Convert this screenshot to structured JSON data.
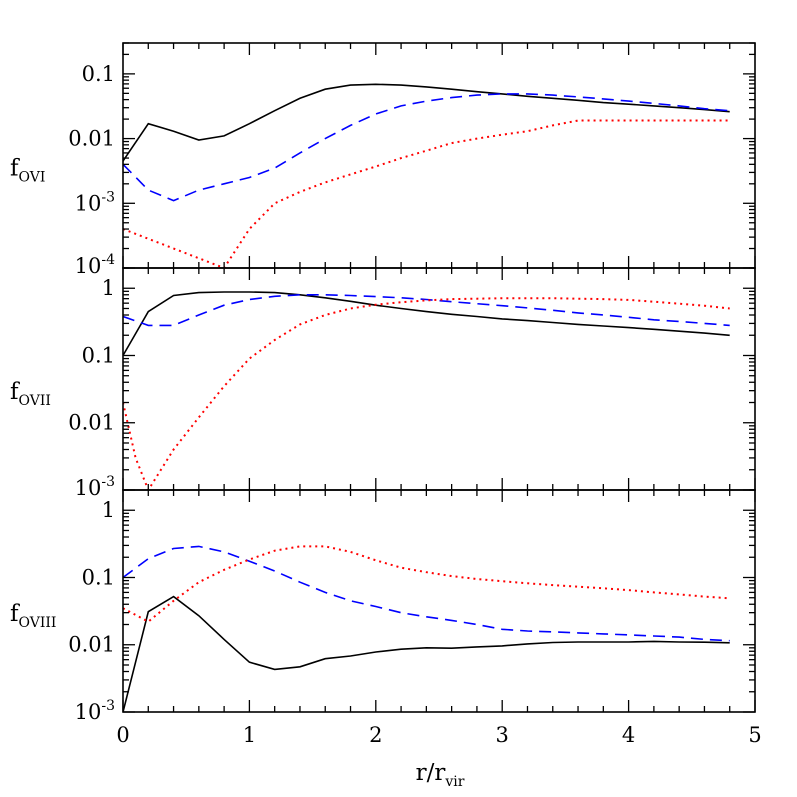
{
  "chart_data": {
    "type": "line",
    "xlabel": {
      "main": "r/r",
      "sub": "vir"
    },
    "xlim": [
      0,
      5
    ],
    "x_ticks": [
      {
        "value": 0,
        "label": "0"
      },
      {
        "value": 1,
        "label": "1"
      },
      {
        "value": 2,
        "label": "2"
      },
      {
        "value": 3,
        "label": "3"
      },
      {
        "value": 4,
        "label": "4"
      },
      {
        "value": 5,
        "label": "5"
      }
    ],
    "series_styles": [
      {
        "key": "black",
        "color": "#000000",
        "style": "solid"
      },
      {
        "key": "blue",
        "color": "#0000ff",
        "style": "dashed"
      },
      {
        "key": "red",
        "color": "#ff0000",
        "style": "dotted"
      }
    ],
    "panels": [
      {
        "ylabel": {
          "main": "f",
          "sub": "OVI"
        },
        "yscale": "log",
        "ylim": [
          0.0001,
          0.3
        ],
        "y_ticks": [
          {
            "value": 0.0001,
            "label": "10",
            "sup": "-4"
          },
          {
            "value": 0.001,
            "label": "10",
            "sup": "-3"
          },
          {
            "value": 0.01,
            "label": "0.01"
          },
          {
            "value": 0.1,
            "label": "0.1"
          }
        ],
        "series": [
          {
            "style_key": "black",
            "x": [
              0,
              0.2,
              0.4,
              0.6,
              0.8,
              1.0,
              1.2,
              1.4,
              1.6,
              1.8,
              2.0,
              2.2,
              2.4,
              2.6,
              2.8,
              3.0,
              3.2,
              3.4,
              3.6,
              3.8,
              4.0,
              4.2,
              4.4,
              4.6,
              4.8
            ],
            "y": [
              0.0045,
              0.017,
              0.013,
              0.0095,
              0.011,
              0.017,
              0.027,
              0.042,
              0.058,
              0.067,
              0.069,
              0.067,
              0.063,
              0.058,
              0.053,
              0.049,
              0.045,
              0.042,
              0.039,
              0.036,
              0.034,
              0.032,
              0.03,
              0.028,
              0.026
            ]
          },
          {
            "style_key": "blue",
            "x": [
              0,
              0.2,
              0.4,
              0.6,
              0.8,
              1.0,
              1.2,
              1.4,
              1.6,
              1.8,
              2.0,
              2.2,
              2.4,
              2.6,
              2.8,
              3.0,
              3.2,
              3.4,
              3.6,
              3.8,
              4.0,
              4.2,
              4.4,
              4.6,
              4.8
            ],
            "y": [
              0.004,
              0.0016,
              0.0011,
              0.0016,
              0.002,
              0.0025,
              0.0035,
              0.006,
              0.01,
              0.016,
              0.024,
              0.032,
              0.038,
              0.043,
              0.047,
              0.049,
              0.049,
              0.047,
              0.044,
              0.041,
              0.038,
              0.035,
              0.032,
              0.029,
              0.027
            ]
          },
          {
            "style_key": "red",
            "x": [
              0,
              0.8,
              1.0,
              1.2,
              1.4,
              1.6,
              1.8,
              2.0,
              2.2,
              2.4,
              2.6,
              2.8,
              3.0,
              3.2,
              3.4,
              3.6,
              3.8,
              4.0,
              4.2,
              4.4,
              4.6,
              4.8
            ],
            "y": [
              0.0004,
              0.0001,
              0.0004,
              0.001,
              0.0015,
              0.0021,
              0.0028,
              0.0037,
              0.005,
              0.0065,
              0.0085,
              0.01,
              0.0115,
              0.013,
              0.016,
              0.019,
              0.019,
              0.019,
              0.019,
              0.019,
              0.019,
              0.019
            ]
          }
        ]
      },
      {
        "ylabel": {
          "main": "f",
          "sub": "OVII"
        },
        "yscale": "log",
        "ylim": [
          0.001,
          2
        ],
        "y_ticks": [
          {
            "value": 0.001,
            "label": "10",
            "sup": "-3"
          },
          {
            "value": 0.01,
            "label": "0.01"
          },
          {
            "value": 0.1,
            "label": "0.1"
          },
          {
            "value": 1,
            "label": "1"
          }
        ],
        "series": [
          {
            "style_key": "black",
            "x": [
              0,
              0.2,
              0.4,
              0.6,
              0.8,
              1.0,
              1.2,
              1.4,
              1.6,
              1.8,
              2.0,
              2.2,
              2.4,
              2.6,
              2.8,
              3.0,
              3.2,
              3.4,
              3.6,
              3.8,
              4.0,
              4.2,
              4.4,
              4.6,
              4.8
            ],
            "y": [
              0.1,
              0.45,
              0.78,
              0.86,
              0.88,
              0.88,
              0.86,
              0.8,
              0.72,
              0.64,
              0.56,
              0.5,
              0.45,
              0.41,
              0.38,
              0.35,
              0.33,
              0.31,
              0.29,
              0.275,
              0.26,
              0.245,
              0.23,
              0.215,
              0.2
            ]
          },
          {
            "style_key": "blue",
            "x": [
              0,
              0.2,
              0.4,
              0.6,
              0.8,
              1.0,
              1.2,
              1.4,
              1.6,
              1.8,
              2.0,
              2.2,
              2.4,
              2.6,
              2.8,
              3.0,
              3.2,
              3.4,
              3.6,
              3.8,
              4.0,
              4.2,
              4.4,
              4.6,
              4.8
            ],
            "y": [
              0.38,
              0.28,
              0.28,
              0.4,
              0.56,
              0.68,
              0.76,
              0.8,
              0.8,
              0.78,
              0.75,
              0.72,
              0.68,
              0.63,
              0.59,
              0.55,
              0.51,
              0.47,
              0.43,
              0.4,
              0.37,
              0.34,
              0.32,
              0.3,
              0.28
            ]
          },
          {
            "style_key": "red",
            "x": [
              0,
              0.1,
              0.2,
              0.4,
              0.6,
              0.8,
              1.0,
              1.2,
              1.4,
              1.6,
              1.8,
              2.0,
              2.2,
              2.4,
              2.6,
              2.8,
              3.0,
              3.2,
              3.4,
              3.6,
              3.8,
              4.0,
              4.2,
              4.4,
              4.6,
              4.8
            ],
            "y": [
              0.02,
              0.003,
              0.001,
              0.004,
              0.012,
              0.035,
              0.09,
              0.17,
              0.29,
              0.4,
              0.5,
              0.57,
              0.62,
              0.66,
              0.69,
              0.7,
              0.71,
              0.71,
              0.71,
              0.7,
              0.69,
              0.67,
              0.63,
              0.59,
              0.55,
              0.5
            ]
          }
        ]
      },
      {
        "ylabel": {
          "main": "f",
          "sub": "OVIII"
        },
        "yscale": "log",
        "ylim": [
          0.001,
          2
        ],
        "y_ticks": [
          {
            "value": 0.001,
            "label": "10",
            "sup": "-3"
          },
          {
            "value": 0.01,
            "label": "0.01"
          },
          {
            "value": 0.1,
            "label": "0.1"
          },
          {
            "value": 1,
            "label": "1"
          }
        ],
        "series": [
          {
            "style_key": "black",
            "x": [
              0,
              0.2,
              0.4,
              0.6,
              0.8,
              1.0,
              1.2,
              1.4,
              1.6,
              1.8,
              2.0,
              2.2,
              2.4,
              2.6,
              2.8,
              3.0,
              3.2,
              3.4,
              3.6,
              3.8,
              4.0,
              4.2,
              4.4,
              4.6,
              4.8
            ],
            "y": [
              0.001,
              0.031,
              0.052,
              0.027,
              0.012,
              0.0055,
              0.0043,
              0.0047,
              0.0062,
              0.0068,
              0.0078,
              0.0086,
              0.009,
              0.0089,
              0.0093,
              0.0096,
              0.0103,
              0.0108,
              0.011,
              0.011,
              0.011,
              0.0112,
              0.011,
              0.0109,
              0.0107
            ]
          },
          {
            "style_key": "blue",
            "x": [
              0,
              0.2,
              0.4,
              0.6,
              0.8,
              1.0,
              1.2,
              1.4,
              1.6,
              1.8,
              2.0,
              2.2,
              2.4,
              2.6,
              2.8,
              3.0,
              3.2,
              3.4,
              3.6,
              3.8,
              4.0,
              4.2,
              4.4,
              4.6,
              4.8
            ],
            "y": [
              0.1,
              0.19,
              0.27,
              0.29,
              0.24,
              0.175,
              0.125,
              0.085,
              0.06,
              0.045,
              0.037,
              0.03,
              0.026,
              0.023,
              0.02,
              0.017,
              0.016,
              0.0155,
              0.015,
              0.0145,
              0.014,
              0.0135,
              0.013,
              0.012,
              0.0115
            ]
          },
          {
            "style_key": "red",
            "x": [
              0,
              0.2,
              0.4,
              0.6,
              0.8,
              1.0,
              1.2,
              1.4,
              1.6,
              1.8,
              2.0,
              2.2,
              2.4,
              2.6,
              2.8,
              3.0,
              3.2,
              3.4,
              3.6,
              3.8,
              4.0,
              4.2,
              4.4,
              4.6,
              4.8
            ],
            "y": [
              0.035,
              0.022,
              0.045,
              0.085,
              0.13,
              0.185,
              0.25,
              0.29,
              0.29,
              0.24,
              0.18,
              0.14,
              0.12,
              0.105,
              0.095,
              0.088,
              0.082,
              0.077,
              0.073,
              0.069,
              0.065,
              0.06,
              0.056,
              0.052,
              0.049
            ]
          }
        ]
      }
    ]
  }
}
